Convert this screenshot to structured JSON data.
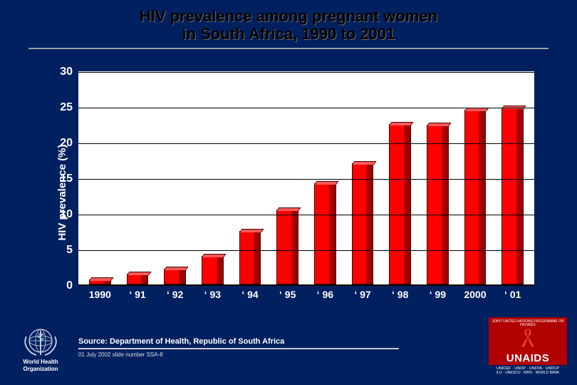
{
  "title": {
    "line1": "HIV prevalence among pregnant women",
    "line2": "in South Africa, 1990 to 2001",
    "fontsize": 22,
    "color": "#000000"
  },
  "chart": {
    "type": "bar",
    "ylabel": "HIV prevalence (%)",
    "label_fontsize": 15,
    "ylim": [
      0,
      30
    ],
    "ytick_step": 5,
    "yticks": [
      0,
      5,
      10,
      15,
      20,
      25,
      30
    ],
    "categories": [
      "1990",
      "‘ 91",
      "‘ 92",
      "‘ 93",
      "‘ 94",
      "‘ 95",
      "‘ 96",
      "‘ 97",
      "‘ 98",
      "‘ 99",
      "2000",
      "‘ 01"
    ],
    "values": [
      0.7,
      1.5,
      2.2,
      4.0,
      7.5,
      10.5,
      14.2,
      17.0,
      22.5,
      22.4,
      24.5,
      24.8
    ],
    "bar_color": "#ff0000",
    "bar_shadow_color": "#a00000",
    "bar_top_color": "#ff5a5a",
    "bar_border": "#400000",
    "bar_width": 0.58,
    "plot_bg": "#ffffff",
    "slide_bg": "#002060",
    "grid_color": "#000000",
    "axis_color": "#000000",
    "tick_font_color": "#ffffff",
    "tick_fontsize": 16,
    "xtick_fontsize": 14
  },
  "footer": {
    "source": "Source:  Department of Health, Republic of South Africa",
    "slide_info": "01 July 2002 slide number SSA-8"
  },
  "logos": {
    "who_label_l1": "World Health",
    "who_label_l2": "Organization",
    "unaids": "UNAIDS",
    "unaids_sub": "UNICEF · UNDP · UNFPA · UNDCP",
    "unaids_sub2": "ILO · UNESCO · WHO · WORLD BANK",
    "unaids_tagline": "JOINT UNITED NATIONS PROGRAMME ON HIV/AIDS"
  }
}
